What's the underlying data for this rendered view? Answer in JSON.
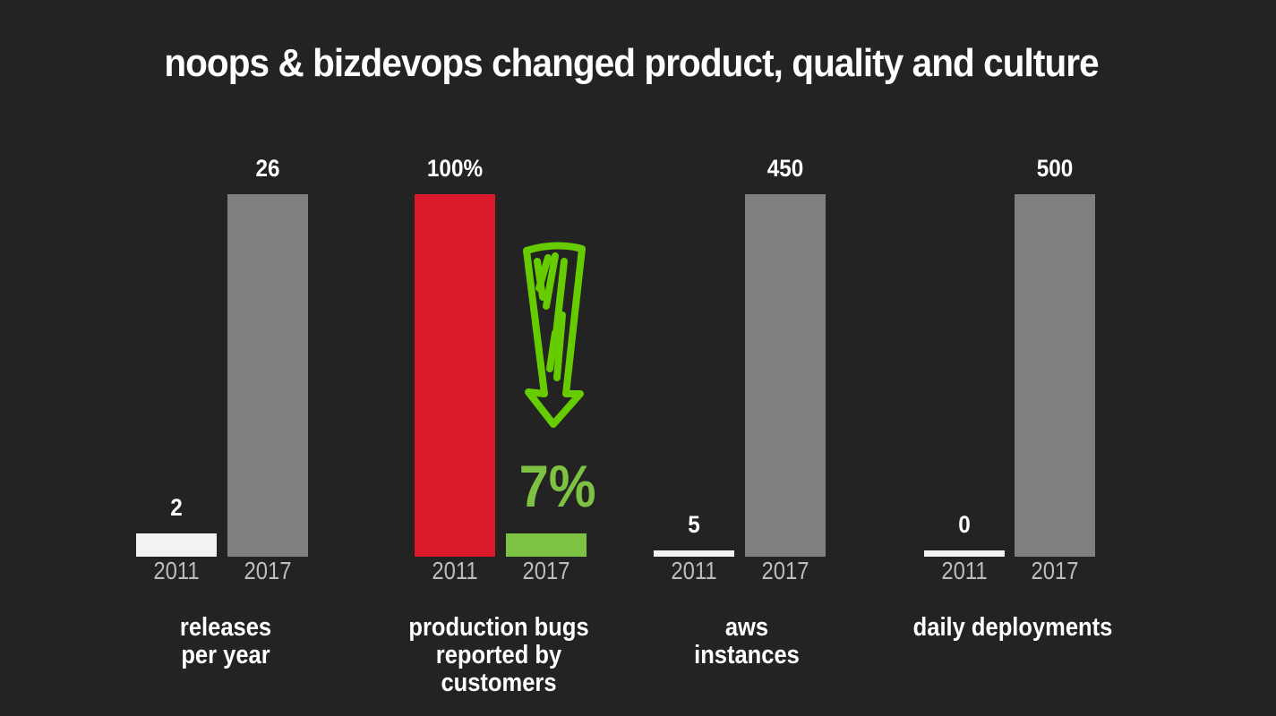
{
  "title": "noops & bizdevops changed product, quality and culture",
  "chart_data": {
    "type": "bar",
    "title": "noops & bizdevops changed product, quality and culture",
    "groups": [
      {
        "label": "releases\nper year",
        "categories": [
          "2011",
          "2017"
        ],
        "values": [
          2,
          26
        ],
        "value_labels": [
          "2",
          "26"
        ],
        "colors": [
          "#f2f2f2",
          "#7f7f7f"
        ]
      },
      {
        "label": "production bugs\nreported by\ncustomers",
        "categories": [
          "2011",
          "2017"
        ],
        "values": [
          100,
          7
        ],
        "value_labels": [
          "100%",
          "7%"
        ],
        "colors": [
          "#da1a2b",
          "#7dc242"
        ]
      },
      {
        "label": "aws\ninstances",
        "categories": [
          "2011",
          "2017"
        ],
        "values": [
          5,
          450
        ],
        "value_labels": [
          "5",
          "450"
        ],
        "colors": [
          "#f2f2f2",
          "#7f7f7f"
        ]
      },
      {
        "label": "daily deployments",
        "categories": [
          "2011",
          "2017"
        ],
        "values": [
          0,
          500
        ],
        "value_labels": [
          "0",
          "500"
        ],
        "colors": [
          "#f2f2f2",
          "#7f7f7f"
        ]
      }
    ],
    "annotation": {
      "icon": "down-arrow-icon",
      "color": "#66cc00"
    },
    "grid": false
  }
}
